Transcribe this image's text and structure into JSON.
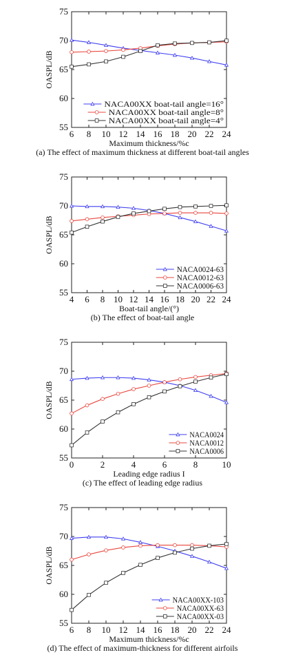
{
  "chart_data": [
    {
      "type": "line",
      "xlabel": "Maximum thickness/%c",
      "ylabel": "OASPL/dB",
      "xlim": [
        6,
        24
      ],
      "ylim": [
        55,
        75
      ],
      "xticks": [
        "6",
        "8",
        "10",
        "12",
        "14",
        "16",
        "18",
        "20",
        "22",
        "24"
      ],
      "yticks": [
        "55",
        "60",
        "65",
        "70",
        "75"
      ],
      "legend_position": "lower-right",
      "caption": "(a)  The effect of maximum thickness at different boat-tail angles",
      "series": [
        {
          "name": "NACA00XX boat-tail angle=16°",
          "color": "#3d3df0",
          "marker": "triangle",
          "x": [
            6,
            8,
            10,
            12,
            14,
            16,
            18,
            20,
            22,
            24
          ],
          "y": [
            70.1,
            69.7,
            69.2,
            68.7,
            68.3,
            67.9,
            67.5,
            67.0,
            66.4,
            65.8
          ]
        },
        {
          "name": "NACA00XX boat-tail angle=8°",
          "color": "#e8453c",
          "marker": "circle",
          "x": [
            6,
            8,
            10,
            12,
            14,
            16,
            18,
            20,
            22,
            24
          ],
          "y": [
            68.0,
            68.1,
            68.2,
            68.4,
            68.7,
            69.1,
            69.4,
            69.6,
            69.7,
            69.8
          ]
        },
        {
          "name": "NACA00XX boat-tail angle=4°",
          "color": "#333333",
          "marker": "square",
          "x": [
            6,
            8,
            10,
            12,
            14,
            16,
            18,
            20,
            22,
            24
          ],
          "y": [
            65.5,
            65.9,
            66.4,
            67.2,
            68.2,
            69.2,
            69.5,
            69.6,
            69.7,
            70.0
          ]
        }
      ]
    },
    {
      "type": "line",
      "xlabel": "Boat-tail angle/(°)",
      "ylabel": "OASPL/dB",
      "xlim": [
        4,
        24
      ],
      "ylim": [
        55,
        75
      ],
      "xticks": [
        "4",
        "6",
        "8",
        "10",
        "12",
        "14",
        "16",
        "18",
        "20",
        "22",
        "24"
      ],
      "yticks": [
        "55",
        "60",
        "65",
        "70",
        "75"
      ],
      "legend_position": "lower-right",
      "caption": "(b)  The effect of boat-tail angle",
      "series": [
        {
          "name": "NACA0024-63",
          "color": "#3d3df0",
          "marker": "triangle",
          "x": [
            4,
            6,
            8,
            10,
            12,
            14,
            16,
            18,
            20,
            22,
            24
          ],
          "y": [
            70.0,
            69.9,
            69.9,
            69.8,
            69.6,
            69.2,
            68.7,
            68.0,
            67.3,
            66.5,
            65.7
          ]
        },
        {
          "name": "NACA0012-63",
          "color": "#e8453c",
          "marker": "circle",
          "x": [
            4,
            6,
            8,
            10,
            12,
            14,
            16,
            18,
            20,
            22,
            24
          ],
          "y": [
            67.4,
            67.7,
            68.0,
            68.2,
            68.4,
            68.6,
            68.7,
            68.8,
            68.8,
            68.8,
            68.7
          ]
        },
        {
          "name": "NACA0006-63",
          "color": "#333333",
          "marker": "square",
          "x": [
            4,
            6,
            8,
            10,
            12,
            14,
            16,
            18,
            20,
            22,
            24
          ],
          "y": [
            65.4,
            66.4,
            67.3,
            68.1,
            68.7,
            69.1,
            69.5,
            69.8,
            69.9,
            70.0,
            70.1
          ]
        }
      ]
    },
    {
      "type": "line",
      "xlabel": "Leading edge radius I",
      "ylabel": "OASPL/dB",
      "xlim": [
        0,
        10
      ],
      "ylim": [
        55,
        75
      ],
      "xticks": [
        "0",
        "2",
        "4",
        "6",
        "8",
        "10"
      ],
      "yticks": [
        "55",
        "60",
        "65",
        "70",
        "75"
      ],
      "legend_position": "lower-right",
      "caption": "(c)  The effect of leading edge radius",
      "series": [
        {
          "name": "NACA0024",
          "color": "#3d3df0",
          "marker": "triangle",
          "x": [
            0,
            1,
            2,
            3,
            4,
            5,
            6,
            7,
            8,
            9,
            10
          ],
          "y": [
            68.6,
            68.8,
            68.9,
            68.9,
            68.8,
            68.5,
            68.1,
            67.5,
            66.7,
            65.7,
            64.6
          ]
        },
        {
          "name": "NACA0012",
          "color": "#e8453c",
          "marker": "circle",
          "x": [
            0,
            1,
            2,
            3,
            4,
            5,
            6,
            7,
            8,
            9,
            10
          ],
          "y": [
            62.7,
            64.1,
            65.2,
            66.1,
            66.9,
            67.5,
            68.1,
            68.6,
            69.0,
            69.3,
            69.6
          ]
        },
        {
          "name": "NACA0006",
          "color": "#333333",
          "marker": "square",
          "x": [
            0,
            1,
            2,
            3,
            4,
            5,
            6,
            7,
            8,
            9,
            10
          ],
          "y": [
            57.2,
            59.4,
            61.3,
            62.9,
            64.3,
            65.5,
            66.5,
            67.4,
            68.2,
            68.9,
            69.5
          ]
        }
      ]
    },
    {
      "type": "line",
      "xlabel": "Maximum thickness/%c",
      "ylabel": "OASPL/dB",
      "xlim": [
        6,
        24
      ],
      "ylim": [
        55,
        75
      ],
      "xticks": [
        "6",
        "8",
        "10",
        "12",
        "14",
        "16",
        "18",
        "20",
        "22",
        "24"
      ],
      "yticks": [
        "55",
        "60",
        "65",
        "70",
        "75"
      ],
      "legend_position": "lower-right",
      "caption": "(d)  The effect of maximum-thickness for different airfoils",
      "series": [
        {
          "name": "NACA00XX-103",
          "color": "#3d3df0",
          "marker": "triangle",
          "x": [
            6,
            8,
            10,
            12,
            14,
            16,
            18,
            20,
            22,
            24
          ],
          "y": [
            69.7,
            69.9,
            69.9,
            69.6,
            69.0,
            68.3,
            67.5,
            66.6,
            65.6,
            64.5
          ]
        },
        {
          "name": "NACA00XX-63",
          "color": "#e8453c",
          "marker": "circle",
          "x": [
            6,
            8,
            10,
            12,
            14,
            16,
            18,
            20,
            22,
            24
          ],
          "y": [
            66.0,
            66.9,
            67.6,
            68.1,
            68.4,
            68.5,
            68.5,
            68.5,
            68.4,
            68.2
          ]
        },
        {
          "name": "NACA00XX-03",
          "color": "#333333",
          "marker": "square",
          "x": [
            6,
            8,
            10,
            12,
            14,
            16,
            18,
            20,
            22,
            24
          ],
          "y": [
            57.3,
            59.9,
            62.0,
            63.7,
            65.1,
            66.3,
            67.2,
            67.9,
            68.4,
            68.7
          ]
        }
      ]
    }
  ]
}
